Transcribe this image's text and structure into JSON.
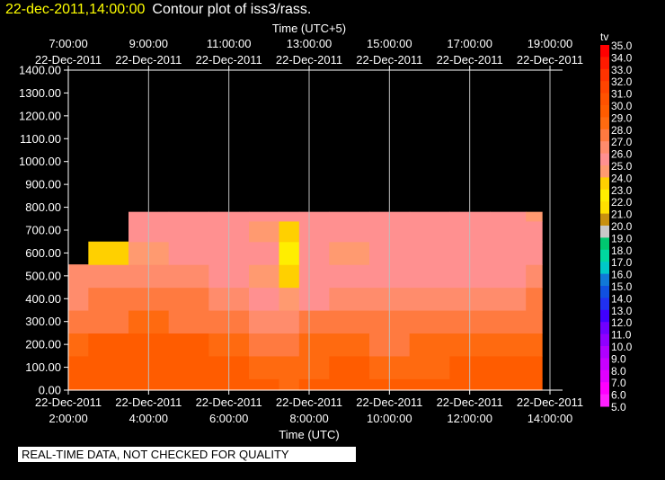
{
  "header": {
    "timestamp": "22-dec-2011,14:00:00",
    "title": "Contour plot of iss3/rass."
  },
  "notice": "REAL-TIME DATA, NOT CHECKED FOR QUALITY",
  "chart_data": {
    "type": "heatmap",
    "title": "Contour plot of iss3/rass.",
    "xlabel": "Time (UTC)",
    "x2label": "Time (UTC+5)",
    "ylabel": "",
    "xlim": [
      2.0,
      14.0
    ],
    "ylim": [
      0,
      1400
    ],
    "grid": true,
    "bottom_axis_ticks": [
      {
        "value": 2,
        "date": "22-Dec-2011",
        "time": "2:00:00"
      },
      {
        "value": 4,
        "date": "22-Dec-2011",
        "time": "4:00:00"
      },
      {
        "value": 6,
        "date": "22-Dec-2011",
        "time": "6:00:00"
      },
      {
        "value": 8,
        "date": "22-Dec-2011",
        "time": "8:00:00"
      },
      {
        "value": 10,
        "date": "22-Dec-2011",
        "time": "10:00:00"
      },
      {
        "value": 12,
        "date": "22-Dec-2011",
        "time": "12:00:00"
      },
      {
        "value": 14,
        "date": "22-Dec-2011",
        "time": "14:00:00"
      }
    ],
    "top_axis_ticks": [
      {
        "value": 2,
        "date": "22-Dec-2011",
        "time": "7:00:00"
      },
      {
        "value": 4,
        "date": "22-Dec-2011",
        "time": "9:00:00"
      },
      {
        "value": 6,
        "date": "22-Dec-2011",
        "time": "11:00:00"
      },
      {
        "value": 8,
        "date": "22-Dec-2011",
        "time": "13:00:00"
      },
      {
        "value": 10,
        "date": "22-Dec-2011",
        "time": "15:00:00"
      },
      {
        "value": 12,
        "date": "22-Dec-2011",
        "time": "17:00:00"
      },
      {
        "value": 14,
        "date": "22-Dec-2011",
        "time": "19:00:00"
      }
    ],
    "y_ticks": [
      "0.00",
      "100.00",
      "200.00",
      "300.00",
      "400.00",
      "500.00",
      "600.00",
      "700.00",
      "800.00",
      "900.00",
      "1000.00",
      "1100.00",
      "1200.00",
      "1300.00",
      "1400.00"
    ],
    "colorbar": {
      "label": "tv",
      "levels": [
        "35.0",
        "34.0",
        "33.0",
        "32.0",
        "31.0",
        "30.0",
        "29.0",
        "28.0",
        "27.0",
        "26.0",
        "25.0",
        "24.0",
        "23.0",
        "22.0",
        "21.0",
        "20.0",
        "19.0",
        "18.0",
        "17.0",
        "16.0",
        "15.0",
        "14.0",
        "13.0",
        "12.0",
        "11.0",
        "10.0",
        "9.0",
        "8.0",
        "7.0",
        "6.0",
        "5.0"
      ],
      "colors": [
        "#ff0000",
        "#ff1a00",
        "#ff3300",
        "#ff4400",
        "#ff5200",
        "#ff5c00",
        "#ff6a10",
        "#ff7a40",
        "#ff8c6c",
        "#ff9090",
        "#ff9a70",
        "#ffd000",
        "#ffee00",
        "#ffe000",
        "#c89010",
        "#c8c8c8",
        "#00c870",
        "#00d8a0",
        "#00c8c8",
        "#1078d8",
        "#1050e0",
        "#2030f0",
        "#4000ff",
        "#7000ff",
        "#9000ff",
        "#b000ff",
        "#c800ff",
        "#e000ff",
        "#ff00ff",
        "#ff20ff"
      ]
    },
    "data_extent": {
      "x": [
        2.0,
        14.0
      ],
      "y": [
        0,
        780
      ]
    },
    "x": [
      2.0,
      3.0,
      4.0,
      5.0,
      6.0,
      7.0,
      7.5,
      8.0,
      9.0,
      10.0,
      11.0,
      12.0,
      13.0,
      13.8
    ],
    "heights": [
      0,
      100,
      200,
      300,
      400,
      500,
      600,
      700,
      780
    ],
    "z": [
      [
        30,
        30,
        30,
        30,
        30,
        30,
        29,
        30,
        30,
        30,
        30,
        30,
        30,
        30
      ],
      [
        30,
        30,
        30,
        30,
        30,
        29,
        29,
        29,
        30,
        29,
        29,
        30,
        30,
        30
      ],
      [
        29,
        30,
        30,
        30,
        29,
        28,
        28,
        29,
        29,
        28,
        29,
        29,
        29,
        29
      ],
      [
        28,
        28,
        29,
        28,
        28,
        27,
        27,
        28,
        28,
        28,
        28,
        28,
        28,
        28
      ],
      [
        27,
        28,
        28,
        28,
        27,
        26,
        25,
        26,
        27,
        27,
        27,
        27,
        27,
        28
      ],
      [
        27,
        27,
        27,
        27,
        26,
        25,
        24,
        26,
        26,
        26,
        26,
        26,
        26,
        27
      ],
      [
        null,
        24,
        25,
        26,
        26,
        26,
        23,
        26,
        25,
        26,
        26,
        26,
        26,
        26
      ],
      [
        null,
        null,
        26,
        26,
        26,
        25,
        24,
        26,
        26,
        26,
        26,
        26,
        26,
        26
      ],
      [
        null,
        null,
        26,
        26,
        26,
        26,
        26,
        26,
        26,
        26,
        26,
        26,
        26,
        25
      ]
    ]
  }
}
